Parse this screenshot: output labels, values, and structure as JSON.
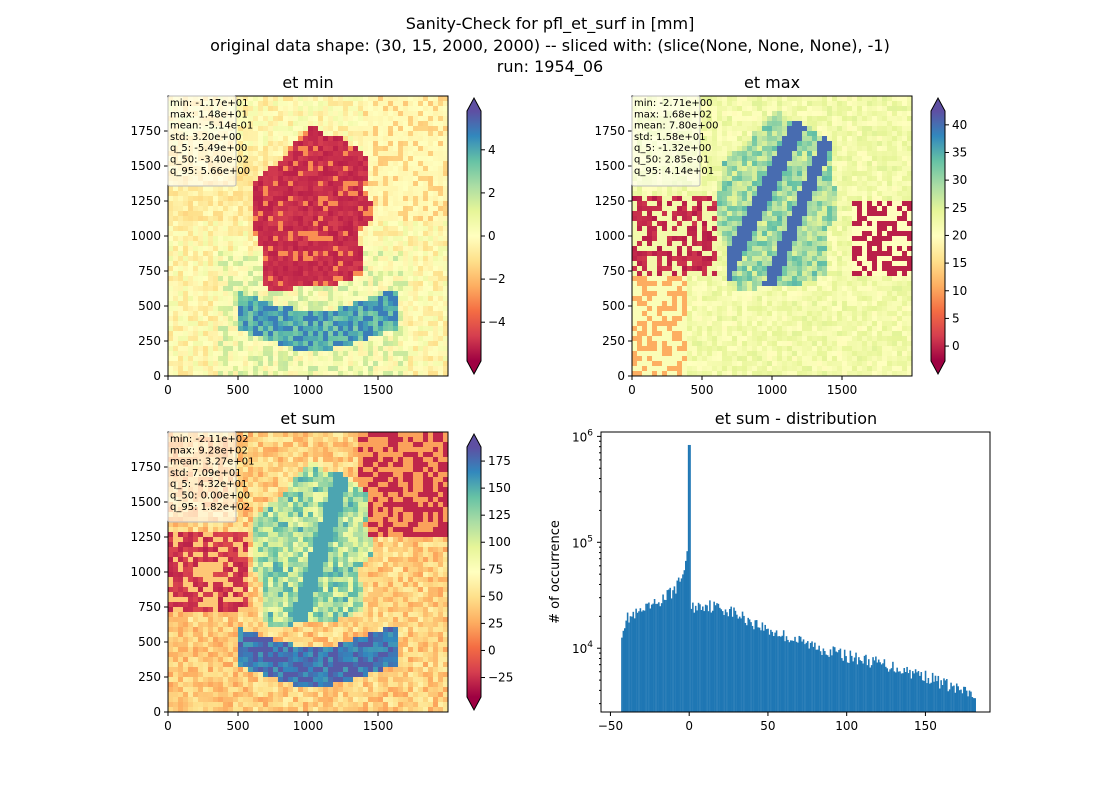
{
  "title_lines": [
    "Sanity-Check for pfl_et_surf in [mm]",
    "original data shape: (30, 15, 2000, 2000) -- sliced with: (slice(None, None, None), -1)",
    "run: 1954_06"
  ],
  "colormap": {
    "name": "Spectral",
    "stops": [
      "#9e0142",
      "#d53e4f",
      "#f46d43",
      "#fdae61",
      "#fee08b",
      "#ffffbf",
      "#e6f598",
      "#abdda4",
      "#66c2a5",
      "#3288bd",
      "#5e4fa2"
    ]
  },
  "chart_data": [
    {
      "type": "heatmap",
      "title": "et min",
      "xlim": [
        0,
        2000
      ],
      "ylim": [
        0,
        2000
      ],
      "xticks": [
        0,
        500,
        1000,
        1500
      ],
      "yticks": [
        0,
        250,
        500,
        750,
        1000,
        1250,
        1500,
        1750
      ],
      "colorbar": {
        "min": -5.8,
        "max": 5.8,
        "ticks": [
          -4,
          -2,
          0,
          2,
          4
        ],
        "extend": "both"
      },
      "stats": [
        "min: -1.17e+01",
        "max: 1.48e+01",
        "mean: -5.14e-01",
        "std: 3.20e+00",
        "q_5: -5.49e+00",
        "q_50: -3.40e-02",
        "q_95: 5.66e+00"
      ]
    },
    {
      "type": "heatmap",
      "title": "et max",
      "xlim": [
        0,
        2000
      ],
      "ylim": [
        0,
        2000
      ],
      "xticks": [
        0,
        500,
        1000,
        1500
      ],
      "yticks": [
        0,
        250,
        500,
        750,
        1000,
        1250,
        1500,
        1750
      ],
      "colorbar": {
        "min": -2.7,
        "max": 42.5,
        "ticks": [
          0,
          5,
          10,
          15,
          20,
          25,
          30,
          35,
          40
        ],
        "extend": "both"
      },
      "stats": [
        "min: -2.71e+00",
        "max: 1.68e+02",
        "mean: 7.80e+00",
        "std: 1.58e+01",
        "q_5: -1.32e+00",
        "q_50: 2.85e-01",
        "q_95: 4.14e+01"
      ]
    },
    {
      "type": "heatmap",
      "title": "et sum",
      "xlim": [
        0,
        2000
      ],
      "ylim": [
        0,
        2000
      ],
      "xticks": [
        0,
        500,
        1000,
        1500
      ],
      "yticks": [
        0,
        250,
        500,
        750,
        1000,
        1250,
        1500,
        1750
      ],
      "colorbar": {
        "min": -43,
        "max": 188,
        "ticks": [
          -25,
          0,
          25,
          50,
          75,
          100,
          125,
          150,
          175
        ],
        "extend": "both"
      },
      "stats": [
        "min: -2.11e+02",
        "max: 9.28e+02",
        "mean: 3.27e+01",
        "std: 7.09e+01",
        "q_5: -4.32e+01",
        "q_50: 0.00e+00",
        "q_95: 1.82e+02"
      ]
    },
    {
      "type": "bar",
      "title": "et sum - distribution",
      "ylabel": "# of occurrence",
      "xlabel": "",
      "yscale": "log",
      "xlim": [
        -56,
        191
      ],
      "ylim": [
        2500,
        1100000
      ],
      "xticks": [
        -50,
        0,
        50,
        100,
        150
      ],
      "yticks": [
        {
          "value": 10000,
          "base": "10",
          "exp": "4"
        },
        {
          "value": 100000,
          "base": "10",
          "exp": "5"
        },
        {
          "value": 1000000,
          "base": "10",
          "exp": "6"
        }
      ],
      "color": "#1f77b4",
      "x_range": [
        -43.2,
        182
      ],
      "anchors": [
        {
          "x": -43.2,
          "y": 14000
        },
        {
          "x": -40,
          "y": 19000
        },
        {
          "x": -30,
          "y": 22000
        },
        {
          "x": -20,
          "y": 27000
        },
        {
          "x": -10,
          "y": 35000
        },
        {
          "x": -5,
          "y": 45000
        },
        {
          "x": -1,
          "y": 80000
        },
        {
          "x": 0,
          "y": 830000
        },
        {
          "x": 1,
          "y": 24000
        },
        {
          "x": 10,
          "y": 26000
        },
        {
          "x": 25,
          "y": 23000
        },
        {
          "x": 50,
          "y": 15000
        },
        {
          "x": 75,
          "y": 11000
        },
        {
          "x": 100,
          "y": 8500
        },
        {
          "x": 125,
          "y": 7000
        },
        {
          "x": 150,
          "y": 5500
        },
        {
          "x": 182,
          "y": 3500
        }
      ]
    }
  ]
}
